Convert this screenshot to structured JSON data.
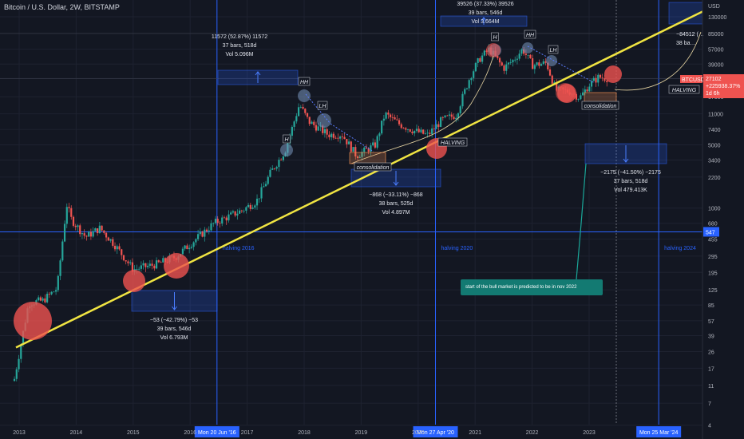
{
  "header": {
    "title": "Bitcoin / U.S. Dollar, 2W, BITSTAMP"
  },
  "price_axis": {
    "currency": "USD",
    "ticks": [
      "130000",
      "85000",
      "57000",
      "39000",
      "27000",
      "17000",
      "11000",
      "7400",
      "5000",
      "3400",
      "2200",
      "1000",
      "680",
      "455",
      "295",
      "195",
      "125",
      "85",
      "57",
      "39",
      "26",
      "17",
      "11",
      "7",
      "4"
    ]
  },
  "time_axis": {
    "ticks": [
      "2013",
      "2014",
      "2015",
      "2016",
      "2017",
      "2018",
      "2019",
      "2020",
      "2021",
      "2022",
      "2023"
    ]
  },
  "price_tags": {
    "symbol": "BTCUSD",
    "last": "27102",
    "change": "+225938.37%",
    "countdown": "1d 6h",
    "halving_tag": "HALVING",
    "level_547": "547"
  },
  "date_tags": [
    "Mon 20 Jun '16",
    "Mon 27 Apr '20",
    "Mon 25 Mar '24"
  ],
  "halvings": [
    "halving 2016",
    "halving 2020",
    "halving 2024"
  ],
  "measures": [
    {
      "line1": "11572 (52.87%) 11572",
      "line2": "37 bars, 518d",
      "line3": "Vol 5.096M"
    },
    {
      "line1": "−53 (−42.79%) −53",
      "line2": "39 bars, 546d",
      "line3": "Vol 6.793M"
    },
    {
      "line1": "−868 (−33.11%) −868",
      "line2": "38 bars, 525d",
      "line3": "Vol 4.897M"
    },
    {
      "line1": "39526 (37.33%) 39526",
      "line2": "39 bars, 546d",
      "line3": "Vol 3.664M"
    },
    {
      "line1": "−2175 (−41.50%) −2175",
      "line2": "37 bars, 518d",
      "line3": "Vol 479.413K"
    },
    {
      "line1": "−84512 (…",
      "line2": "38 ba…"
    }
  ],
  "labels": {
    "h": "H",
    "hh": "HH",
    "lh": "LH",
    "consolidation": "consolidation",
    "halving": "HALVING"
  },
  "note": "start of the bull market is predicted to be in nov 2022",
  "colors": {
    "bg": "#131722",
    "up": "#26a69a",
    "down": "#ef5350",
    "trend": "#f0e442",
    "guide": "#2962ff"
  },
  "chart_data": {
    "type": "candlestick",
    "title": "Bitcoin / U.S. Dollar, 2W, BITSTAMP",
    "scale": "log",
    "x": [
      "2012-12",
      "2013-03",
      "2013-06",
      "2013-09",
      "2013-11",
      "2013-12",
      "2014-03",
      "2014-06",
      "2014-09",
      "2015-01",
      "2015-06",
      "2015-10",
      "2016-01",
      "2016-06",
      "2016-12",
      "2017-03",
      "2017-06",
      "2017-09",
      "2017-12",
      "2018-02",
      "2018-06",
      "2018-09",
      "2018-12",
      "2019-04",
      "2019-06",
      "2019-09",
      "2019-12",
      "2020-03",
      "2020-06",
      "2020-09",
      "2020-12",
      "2021-02",
      "2021-04",
      "2021-07",
      "2021-09",
      "2021-11",
      "2022-01",
      "2022-04",
      "2022-06",
      "2022-09",
      "2022-11",
      "2023-01",
      "2023-03",
      "2023-05"
    ],
    "close": [
      13,
      90,
      95,
      130,
      1100,
      750,
      480,
      600,
      400,
      210,
      240,
      290,
      400,
      680,
      950,
      1200,
      2500,
      4300,
      14000,
      9000,
      6500,
      6500,
      3800,
      5000,
      11000,
      8500,
      7200,
      6400,
      9400,
      10700,
      29000,
      45000,
      57000,
      35000,
      43000,
      57000,
      38000,
      40000,
      20000,
      19500,
      16500,
      23000,
      28000,
      27102
    ],
    "trend_line": {
      "from": [
        "2013-01",
        30
      ],
      "to": [
        "2023-09",
        58000
      ]
    },
    "halving_dates": [
      "2016-06-20",
      "2020-04-27",
      "2024-03-25"
    ]
  }
}
